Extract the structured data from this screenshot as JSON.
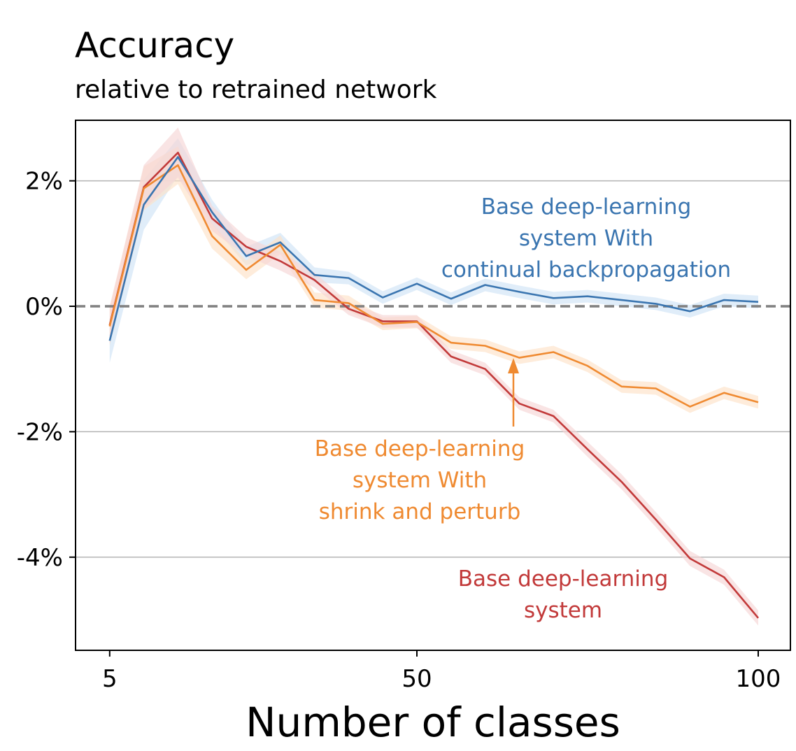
{
  "chart_data": {
    "type": "line",
    "title": "Accuracy",
    "subtitle": "relative to retrained network",
    "xlabel": "Number of classes",
    "ylabel": "",
    "xlim": [
      0,
      100
    ],
    "ylim": [
      -5.45,
      2.95
    ],
    "x_ticks": [
      5,
      50,
      100
    ],
    "x_tick_labels": [
      "5",
      "50",
      "100"
    ],
    "y_ticks": [
      2,
      0,
      -2,
      -4
    ],
    "y_tick_labels": [
      "2%",
      "0%",
      "-2%",
      "-4%"
    ],
    "grid": "horizontal",
    "reference_line": 0,
    "x": [
      5,
      10,
      15,
      20,
      25,
      30,
      35,
      40,
      45,
      50,
      55,
      60,
      65,
      70,
      75,
      80,
      85,
      90,
      95,
      100
    ],
    "series": [
      {
        "name": "Base deep-learning system With continual backpropagation",
        "label_lines": [
          "Base deep-learning",
          "system With",
          "continual backpropagation"
        ],
        "color": "#3a75b0",
        "band_color": "#cfe3f6",
        "values": [
          -0.55,
          1.62,
          2.38,
          1.5,
          0.8,
          1.02,
          0.5,
          0.45,
          0.14,
          0.36,
          0.12,
          0.34,
          0.23,
          0.13,
          0.16,
          0.1,
          0.04,
          -0.08,
          0.1,
          0.07
        ],
        "band": [
          0.35,
          0.4,
          0.3,
          0.2,
          0.15,
          0.15,
          0.12,
          0.1,
          0.1,
          0.1,
          0.1,
          0.1,
          0.1,
          0.1,
          0.1,
          0.1,
          0.1,
          0.1,
          0.1,
          0.1
        ]
      },
      {
        "name": "Base deep-learning system With shrink and perturb",
        "label_lines": [
          "Base deep-learning",
          "system With",
          "shrink and perturb"
        ],
        "color": "#ef8a31",
        "band_color": "#fde2c8",
        "values": [
          -0.32,
          1.88,
          2.25,
          1.12,
          0.58,
          0.98,
          0.1,
          0.05,
          -0.28,
          -0.25,
          -0.58,
          -0.63,
          -0.82,
          -0.73,
          -0.95,
          -1.28,
          -1.31,
          -1.6,
          -1.38,
          -1.53
        ],
        "band": [
          0.3,
          0.35,
          0.3,
          0.2,
          0.15,
          0.15,
          0.12,
          0.12,
          0.1,
          0.1,
          0.1,
          0.1,
          0.1,
          0.1,
          0.1,
          0.1,
          0.1,
          0.1,
          0.1,
          0.1
        ]
      },
      {
        "name": "Base deep-learning system",
        "label_lines": [
          "Base deep-learning",
          "system"
        ],
        "color": "#c23a3a",
        "band_color": "#f6d6d6",
        "values": [
          -0.3,
          1.9,
          2.45,
          1.4,
          0.95,
          0.72,
          0.42,
          -0.04,
          -0.24,
          -0.24,
          -0.8,
          -1.0,
          -1.55,
          -1.75,
          -2.28,
          -2.8,
          -3.4,
          -4.02,
          -4.32,
          -4.97
        ],
        "band": [
          0.3,
          0.35,
          0.4,
          0.2,
          0.15,
          0.15,
          0.12,
          0.1,
          0.1,
          0.1,
          0.1,
          0.1,
          0.1,
          0.1,
          0.12,
          0.12,
          0.12,
          0.12,
          0.12,
          0.12
        ]
      }
    ],
    "arrow_color": "#ef8a31"
  }
}
